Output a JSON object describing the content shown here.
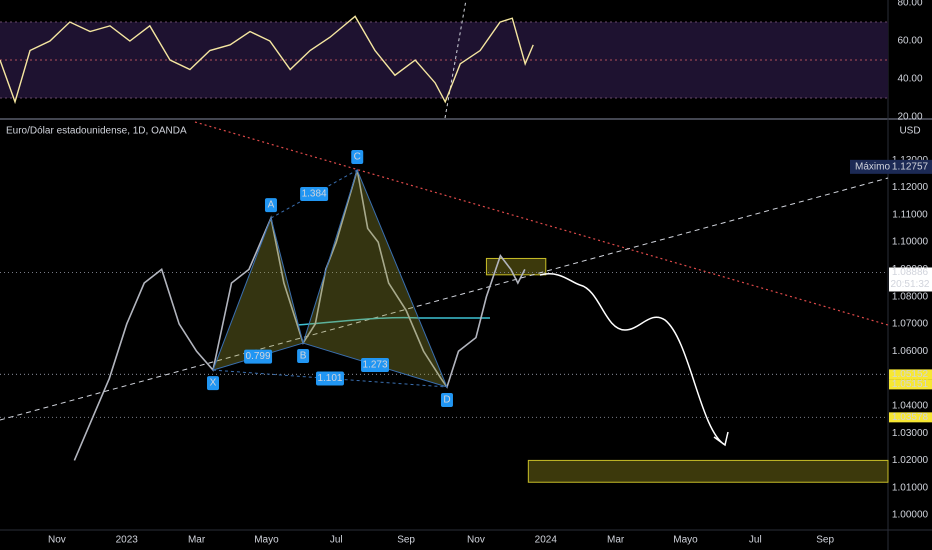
{
  "chart_data": [
    {
      "type": "line",
      "color": "#f5e6a0",
      "x": [
        -1.63,
        -1.2,
        -0.77,
        -0.2,
        0.37,
        0.95,
        1.52,
        2.09,
        2.66,
        3.24,
        3.81,
        4.38,
        4.96,
        5.53,
        6.1,
        6.68,
        7.25,
        7.82,
        8.54,
        9.11,
        9.68,
        10.26,
        10.83,
        11.12,
        11.55,
        12.12,
        12.69,
        13.04,
        13.41,
        13.64
      ],
      "values": [
        50,
        28,
        55,
        60,
        70,
        65,
        68,
        60,
        68,
        50,
        45,
        55,
        58,
        65,
        60,
        45,
        55,
        62,
        73,
        55,
        42,
        50,
        38,
        28,
        48,
        55,
        70,
        72,
        48,
        58
      ],
      "xlim": [
        -1.63,
        23.8
      ],
      "ylim": [
        19.5,
        81.6
      ],
      "yticks": [
        {
          "value": 80,
          "label": "80.00"
        },
        {
          "value": 60,
          "label": "60.00"
        },
        {
          "value": 40,
          "label": "40.00"
        },
        {
          "value": 20,
          "label": "20.00"
        }
      ],
      "levels": [
        70,
        50,
        30
      ]
    },
    {
      "type": "line",
      "title": "Euro/Dólar estadounidense, 1D, OANDA",
      "currency": "USD",
      "color": "#b2b5be",
      "x": [
        0.5,
        1,
        1.5,
        2,
        2.5,
        3,
        3.5,
        4,
        4.47,
        5,
        5.5,
        6.13,
        6.5,
        7.05,
        7.4,
        7.7,
        8,
        8.6,
        8.9,
        9.2,
        9.5,
        10,
        10.5,
        11,
        11.17,
        11.5,
        12,
        12.3,
        12.7,
        13,
        13.2,
        13.4
      ],
      "values": [
        1.02,
        1.035,
        1.05,
        1.07,
        1.085,
        1.09,
        1.07,
        1.06,
        1.0531,
        1.085,
        1.09,
        1.1088,
        1.085,
        1.063,
        1.07,
        1.09,
        1.1,
        1.1264,
        1.105,
        1.1,
        1.085,
        1.075,
        1.06,
        1.05,
        1.0469,
        1.06,
        1.065,
        1.08,
        1.095,
        1.09,
        1.085,
        1.09
      ],
      "xlim": [
        -1.63,
        23.8
      ],
      "ylim": [
        0.9945,
        1.144
      ],
      "xticks": [
        {
          "value": 0,
          "label": "Nov"
        },
        {
          "value": 2,
          "label": "2023"
        },
        {
          "value": 4,
          "label": "Mar"
        },
        {
          "value": 6,
          "label": "Mayo"
        },
        {
          "value": 8,
          "label": "Jul"
        },
        {
          "value": 10,
          "label": "Sep"
        },
        {
          "value": 12,
          "label": "Nov"
        },
        {
          "value": 14,
          "label": "2024"
        },
        {
          "value": 16,
          "label": "Mar"
        },
        {
          "value": 18,
          "label": "Mayo"
        },
        {
          "value": 20,
          "label": "Jul"
        },
        {
          "value": 22,
          "label": "Sep"
        }
      ],
      "yticks": [
        {
          "value": 1.13,
          "label": "1.13000"
        },
        {
          "value": 1.12,
          "label": "1.12000"
        },
        {
          "value": 1.11,
          "label": "1.11000"
        },
        {
          "value": 1.1,
          "label": "1.10000"
        },
        {
          "value": 1.09,
          "label": "1.09000"
        },
        {
          "value": 1.08,
          "label": "1.08000"
        },
        {
          "value": 1.07,
          "label": "1.07000"
        },
        {
          "value": 1.06,
          "label": "1.06000"
        },
        {
          "value": 1.05,
          "label": "1.05000"
        },
        {
          "value": 1.04,
          "label": "1.04000"
        },
        {
          "value": 1.03,
          "label": "1.03000"
        },
        {
          "value": 1.02,
          "label": "1.02000"
        },
        {
          "value": 1.01,
          "label": "1.01000"
        },
        {
          "value": 1.0,
          "label": "1.00000"
        }
      ],
      "pattern": {
        "points": [
          {
            "label": "X",
            "x": 4.47,
            "y": 1.0531
          },
          {
            "label": "A",
            "x": 6.13,
            "y": 1.1088
          },
          {
            "label": "B",
            "x": 7.05,
            "y": 1.063
          },
          {
            "label": "C",
            "x": 8.6,
            "y": 1.1264
          },
          {
            "label": "D",
            "x": 11.17,
            "y": 1.0469
          }
        ],
        "ratios": [
          1.384,
          0.799,
          1.273,
          1.101
        ]
      },
      "zones": [
        {
          "x": [
            12.3,
            14.0
          ],
          "y": [
            1.088,
            1.094
          ]
        },
        {
          "x": [
            13.5,
            23.8
          ],
          "y": [
            1.012,
            1.02
          ]
        }
      ],
      "markers": [
        {
          "value": 1.08886,
          "time": "20:51:32",
          "color": "#ffffff"
        },
        {
          "value": 1.05152,
          "color": "#f7e733"
        },
        {
          "value": 1.05151,
          "color": "#f7e733"
        },
        {
          "value": 1.03578,
          "color": "#f7e733"
        }
      ],
      "high": {
        "label": "Máximo",
        "value": 1.12757
      }
    }
  ]
}
